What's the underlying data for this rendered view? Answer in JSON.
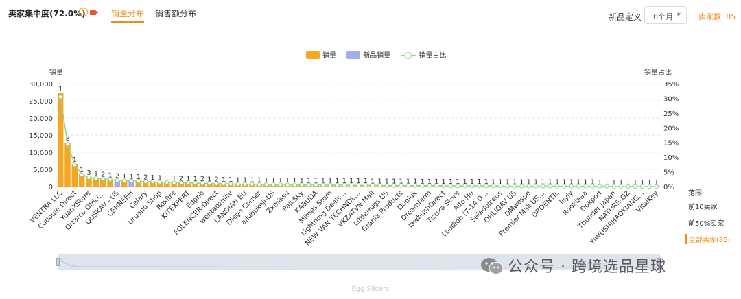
{
  "header": {
    "title": "卖家集中度(72.0%)",
    "tabs": [
      "销量分布",
      "销售额分布"
    ],
    "new_product_label": "新品定义",
    "new_product_select": "6个月",
    "seller_count": "卖家数: 85"
  },
  "range_panel": {
    "title": "范围:",
    "options": [
      "前10卖家",
      "前50%卖家",
      "全部卖家(85)"
    ],
    "active_index": 2
  },
  "footer_text": "Egg Slicers",
  "watermark": "公众号 · 跨境选品星球",
  "colors": {
    "sales": "#f5a623",
    "new_sales": "#a3acef",
    "share": "#8ed68e",
    "accent": "#f08c1e"
  },
  "chart_data": {
    "type": "bar",
    "legend": [
      "销量",
      "新品销量",
      "销量占比"
    ],
    "legend_position": "top-center",
    "ylabel": "销量",
    "y2label": "销量占比",
    "ylim": [
      0,
      30000
    ],
    "yticks": [
      "0",
      "5,000",
      "10,000",
      "15,000",
      "20,000",
      "25,000",
      "30,000"
    ],
    "y2lim": [
      0,
      35
    ],
    "y2ticks": [
      "0%",
      "5%",
      "10%",
      "15%",
      "20%",
      "25%",
      "30%",
      "35%"
    ],
    "grid": true,
    "categories": [
      "VENTRA LLC",
      "",
      "Codoule Direct",
      "",
      "YuanXStore",
      "",
      "Ortarco Offici…",
      "",
      "QUSKAV - US",
      "",
      "CEHNEEH",
      "",
      "Calary",
      "",
      "Uruano Shop",
      "",
      "Roxfire",
      "",
      "KITEXPERT",
      "",
      "Edgnb",
      "",
      "FOLENCER-Direct",
      "",
      "wentaozhiliv",
      "",
      "LANDIAN EU",
      "",
      "Diego Corner",
      "",
      "ailubukeji-US",
      "",
      "Zxmissu",
      "",
      "PalkSky",
      "",
      "KABUDA",
      "",
      "Mitees Store",
      "",
      "Lightning Deals…",
      "",
      "NEW VAN TECHNOL…",
      "",
      "VKZATVN Mall",
      "",
      "LittleHugs US",
      "",
      "Grania Products",
      "",
      "Dupiuk",
      "",
      "Dreamfarm",
      "",
      "JawbushDirect",
      "",
      "Tizuxa Store",
      "",
      "Alto Hu",
      "",
      "Loodion (7-14 D…",
      "",
      "Saladulceus",
      "",
      "OHLIGAV US",
      "",
      "DMwespe",
      "",
      "Premier Mall US…",
      "",
      "DROENTIL",
      "",
      "liiyly",
      "",
      "Rookiaaa",
      "",
      "Dokpod",
      "",
      "Thunder Japan",
      "",
      "NATURE-GZ",
      "",
      "YIWUSHIHAOXIANG…",
      "",
      "VitalKey"
    ],
    "series": [
      {
        "name": "销量",
        "values": [
          27200,
          12800,
          6600,
          3600,
          2800,
          2500,
          2300,
          2100,
          1900,
          1800,
          1700,
          1600,
          1500,
          1400,
          1300,
          1250,
          1200,
          1150,
          1100,
          1050,
          1000,
          950,
          900,
          850,
          800,
          750,
          700,
          680,
          660,
          640,
          620,
          600,
          580,
          560,
          540,
          520,
          500,
          480,
          460,
          440,
          420,
          400,
          380,
          360,
          340,
          320,
          300,
          290,
          280,
          270,
          260,
          250,
          240,
          230,
          220,
          210,
          200,
          190,
          180,
          170,
          160,
          150,
          140,
          130,
          120,
          110,
          100,
          95,
          90,
          85,
          80,
          75,
          70,
          65,
          60,
          55,
          50,
          45,
          40,
          35,
          30,
          25,
          20,
          15,
          10
        ]
      },
      {
        "name": "新品销量",
        "values": [
          0,
          0,
          0,
          0,
          0,
          0,
          0,
          0,
          1600,
          0,
          1500,
          0,
          0,
          0,
          0,
          0,
          0,
          0,
          0,
          0,
          0,
          0,
          0,
          0,
          0,
          0,
          0,
          0,
          0,
          0,
          0,
          0,
          0,
          0,
          0,
          0,
          0,
          0,
          0,
          0,
          0,
          0,
          0,
          0,
          0,
          0,
          0,
          0,
          0,
          0,
          0,
          0,
          0,
          0,
          0,
          0,
          0,
          0,
          0,
          0,
          0,
          0,
          0,
          0,
          0,
          0,
          0,
          0,
          0,
          0,
          0,
          0,
          0,
          0,
          0,
          0,
          0,
          0,
          0,
          0,
          0,
          0,
          0,
          0,
          0
        ]
      },
      {
        "name": "销量占比",
        "values": [
          30.5,
          14.4,
          7.4,
          4.0,
          3.1,
          2.8,
          2.6,
          2.4,
          2.1,
          2.0,
          1.9,
          1.8,
          1.7,
          1.6,
          1.5,
          1.4,
          1.3,
          1.3,
          1.2,
          1.2,
          1.1,
          1.1,
          1.0,
          1.0,
          0.9,
          0.8,
          0.8,
          0.8,
          0.7,
          0.7,
          0.7,
          0.7,
          0.6,
          0.6,
          0.6,
          0.6,
          0.6,
          0.5,
          0.5,
          0.5,
          0.5,
          0.4,
          0.4,
          0.4,
          0.4,
          0.4,
          0.3,
          0.3,
          0.3,
          0.3,
          0.3,
          0.3,
          0.3,
          0.3,
          0.2,
          0.2,
          0.2,
          0.2,
          0.2,
          0.2,
          0.2,
          0.2,
          0.2,
          0.1,
          0.1,
          0.1,
          0.1,
          0.1,
          0.1,
          0.1,
          0.1,
          0.1,
          0.1,
          0.1,
          0.1,
          0.1,
          0.1,
          0.1,
          0,
          0,
          0,
          0,
          0,
          0,
          0
        ]
      }
    ],
    "bar_labels": [
      "1",
      "8",
      "1",
      "1",
      "3",
      "1",
      "2",
      "1",
      "2",
      "1",
      "1",
      "1",
      "2",
      "1",
      "1",
      "1",
      "1",
      "2",
      "1",
      "1",
      "2",
      "1",
      "2",
      "1",
      "1",
      "1",
      "1",
      "1",
      "1",
      "1",
      "1",
      "1",
      "1",
      "1",
      "1",
      "1",
      "1",
      "1",
      "1",
      "1",
      "1",
      "1",
      "1",
      "1",
      "1",
      "1",
      "1",
      "1",
      "1",
      "1",
      "1",
      "1",
      "1",
      "1",
      "1",
      "1",
      "1",
      "1",
      "1",
      "1",
      "1",
      "1",
      "1",
      "1",
      "1",
      "1",
      "1",
      "1",
      "1",
      "1",
      "1",
      "1",
      "1",
      "1",
      "1",
      "1",
      "1",
      "1",
      "1",
      "1",
      "1",
      "1",
      "1",
      "1",
      "1"
    ]
  }
}
